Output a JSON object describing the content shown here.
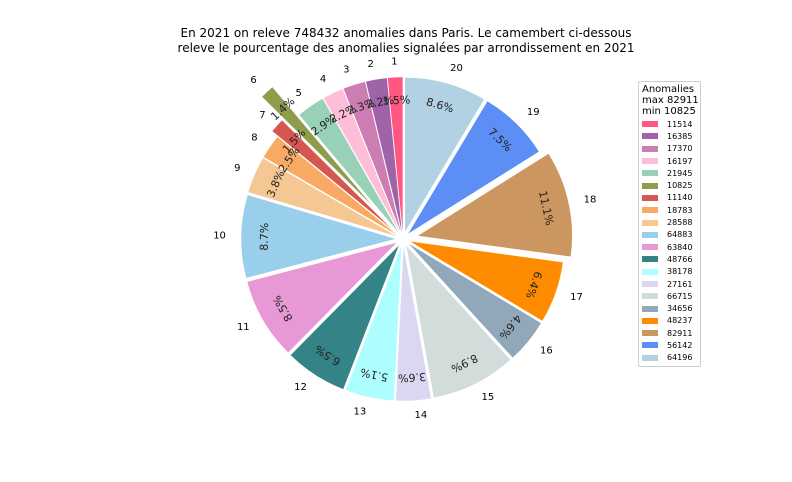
{
  "title_lines": [
    "En 2021 on releve 748432 anomalies dans Paris. Le camembert ci-dessous",
    "releve le pourcentage des anomalies signalées par arrondissement en 2021"
  ],
  "legend": {
    "title_lines": [
      "Anomalies",
      "max 82911",
      "min 10825"
    ]
  },
  "chart_data": {
    "type": "pie",
    "title": "En 2021 on releve 748432 anomalies dans Paris. Le camembert ci-dessous releve le pourcentage des anomalies signalées par arrondissement en 2021",
    "start_angle_deg": 90,
    "direction": "counterclockwise",
    "categories": [
      "1",
      "2",
      "3",
      "4",
      "5",
      "6",
      "7",
      "8",
      "9",
      "10",
      "11",
      "12",
      "13",
      "14",
      "15",
      "16",
      "17",
      "18",
      "19",
      "20"
    ],
    "values": [
      11514,
      16385,
      17370,
      16197,
      21945,
      10825,
      11140,
      18783,
      28588,
      64883,
      63840,
      48766,
      38178,
      27161,
      66715,
      34656,
      48237,
      82911,
      56142,
      64196
    ],
    "percent_labels": [
      "1.5%",
      "2.2%",
      "2.3%",
      "2.2%",
      "2.9%",
      "1.4%",
      "1.5%",
      "2.5%",
      "3.8%",
      "8.7%",
      "8.5%",
      "6.5%",
      "5.1%",
      "3.6%",
      "8.9%",
      "4.6%",
      "6.4%",
      "11.1%",
      "7.5%",
      "8.6%"
    ],
    "explode": [
      0.05,
      0.05,
      0.05,
      0.05,
      0.05,
      0.3,
      0.1,
      0.05,
      0.05,
      0.05,
      0.05,
      0.05,
      0.05,
      0.05,
      0.05,
      0.05,
      0.05,
      0.1,
      0.05,
      0.05
    ],
    "colors": [
      "#ff577f",
      "#a062a8",
      "#cc7eb2",
      "#ffbed8",
      "#98d1b7",
      "#8e9c4c",
      "#d5574f",
      "#f8aa64",
      "#f4c793",
      "#9acfeb",
      "#e899d5",
      "#348487",
      "#adffff",
      "#dbd6f1",
      "#d2dcdb",
      "#91a8bb",
      "#ff8c00",
      "#cb9660",
      "#5c8ef5",
      "#b2d1e2"
    ],
    "legend_labels": [
      "11514",
      "16385",
      "17370",
      "16197",
      "21945",
      "10825",
      "11140",
      "18783",
      "28588",
      "64883",
      "63840",
      "48766",
      "38178",
      "27161",
      "66715",
      "34656",
      "48237",
      "82911",
      "56142",
      "64196"
    ],
    "legend_position": "right"
  }
}
